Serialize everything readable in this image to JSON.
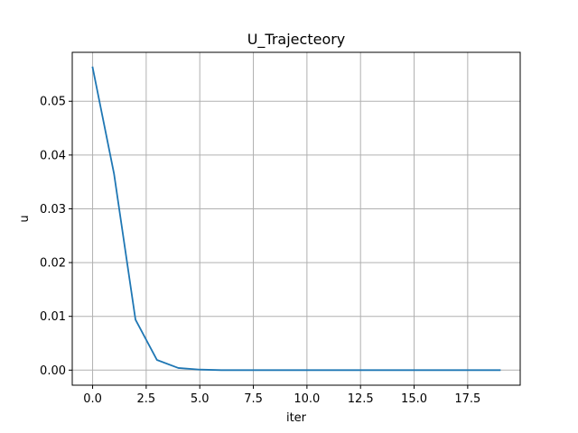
{
  "chart_data": {
    "type": "line",
    "title": "U_Trajecteory",
    "xlabel": "iter",
    "ylabel": "u",
    "xlim": [
      -0.95,
      19.95
    ],
    "ylim": [
      -0.0028,
      0.0591
    ],
    "grid": true,
    "x_ticks": [
      {
        "value": 0.0,
        "label": "0.0"
      },
      {
        "value": 2.5,
        "label": "2.5"
      },
      {
        "value": 5.0,
        "label": "5.0"
      },
      {
        "value": 7.5,
        "label": "7.5"
      },
      {
        "value": 10.0,
        "label": "10.0"
      },
      {
        "value": 12.5,
        "label": "12.5"
      },
      {
        "value": 15.0,
        "label": "15.0"
      },
      {
        "value": 17.5,
        "label": "17.5"
      }
    ],
    "y_ticks": [
      {
        "value": 0.0,
        "label": "0.00"
      },
      {
        "value": 0.01,
        "label": "0.01"
      },
      {
        "value": 0.02,
        "label": "0.02"
      },
      {
        "value": 0.03,
        "label": "0.03"
      },
      {
        "value": 0.04,
        "label": "0.04"
      },
      {
        "value": 0.05,
        "label": "0.05"
      }
    ],
    "series": [
      {
        "color": "#1f77b4",
        "x": [
          0,
          1,
          2,
          3,
          4,
          5,
          6,
          7,
          8,
          9,
          10,
          11,
          12,
          13,
          14,
          15,
          16,
          17,
          18,
          19
        ],
        "values": [
          0.0563,
          0.0365,
          0.0094,
          0.0019,
          0.0004,
          0.0001,
          0.0,
          0.0,
          0.0,
          0.0,
          0.0,
          0.0,
          0.0,
          0.0,
          0.0,
          0.0,
          0.0,
          0.0,
          0.0,
          0.0
        ]
      }
    ]
  }
}
